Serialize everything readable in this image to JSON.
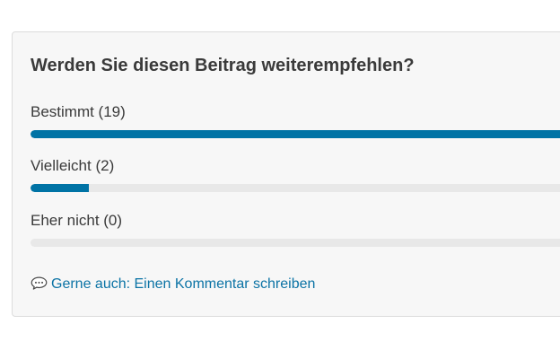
{
  "poll": {
    "question": "Werden Sie diesen Beitrag weiterempfehlen?",
    "options": [
      {
        "label": "Bestimmt (19)",
        "share": 1.0
      },
      {
        "label": "Vielleicht (2)",
        "share": 0.105
      },
      {
        "label": "Eher nicht (0)",
        "share": 0.0
      }
    ],
    "bar_color": "#0073a5",
    "track_color": "#e8e8e8"
  },
  "footer": {
    "icon": "speech-bubble-icon",
    "link_text": "Gerne auch: Einen Kommentar schreiben",
    "link_color": "#0b73a5"
  }
}
